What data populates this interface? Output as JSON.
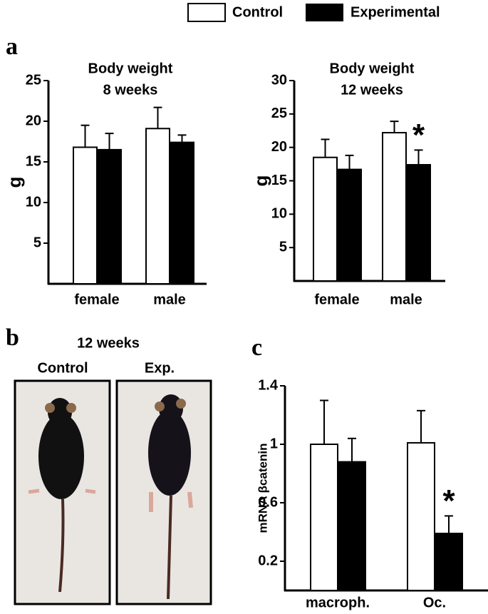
{
  "panel_labels": [
    "a",
    "b",
    "c"
  ],
  "photo": {
    "title": "12 weeks",
    "labels": [
      "Control",
      "Exp."
    ]
  },
  "chart_data": [
    {
      "type": "bar",
      "title": [
        "Body weight",
        "8 weeks"
      ],
      "ylabel": "g",
      "categories": [
        "female",
        "male"
      ],
      "ylim": [
        0,
        25
      ],
      "yticks": [
        5,
        10,
        15,
        20,
        25
      ],
      "series": [
        {
          "name": "Control",
          "color": "#ffffff",
          "values": [
            16.8,
            19.1
          ],
          "errors": [
            2.7,
            2.6
          ]
        },
        {
          "name": "Experimental",
          "color": "#000000",
          "values": [
            16.5,
            17.4
          ],
          "errors": [
            2.0,
            0.9
          ]
        }
      ]
    },
    {
      "type": "bar",
      "title": [
        "Body weight",
        "12 weeks"
      ],
      "ylabel": "g",
      "categories": [
        "female",
        "male"
      ],
      "ylim": [
        0,
        30
      ],
      "yticks": [
        5,
        10,
        15,
        20,
        25,
        30
      ],
      "series": [
        {
          "name": "Control",
          "color": "#ffffff",
          "values": [
            18.5,
            22.2
          ],
          "errors": [
            2.7,
            1.7
          ]
        },
        {
          "name": "Experimental",
          "color": "#000000",
          "values": [
            16.7,
            17.4
          ],
          "errors": [
            2.1,
            2.2
          ],
          "annotations": [
            null,
            "*"
          ]
        }
      ]
    },
    {
      "type": "bar",
      "ylabel": "mRNA βcatenin",
      "categories": [
        "macroph.",
        "Oc."
      ],
      "ylim": [
        0,
        1.4
      ],
      "yticks": [
        0.2,
        0.6,
        1,
        1.4
      ],
      "series": [
        {
          "name": "Control",
          "color": "#ffffff",
          "values": [
            1.0,
            1.01
          ],
          "errors": [
            0.3,
            0.22
          ]
        },
        {
          "name": "Experimental",
          "color": "#000000",
          "values": [
            0.88,
            0.39
          ],
          "errors": [
            0.16,
            0.12
          ],
          "annotations": [
            null,
            "*"
          ]
        }
      ]
    }
  ]
}
